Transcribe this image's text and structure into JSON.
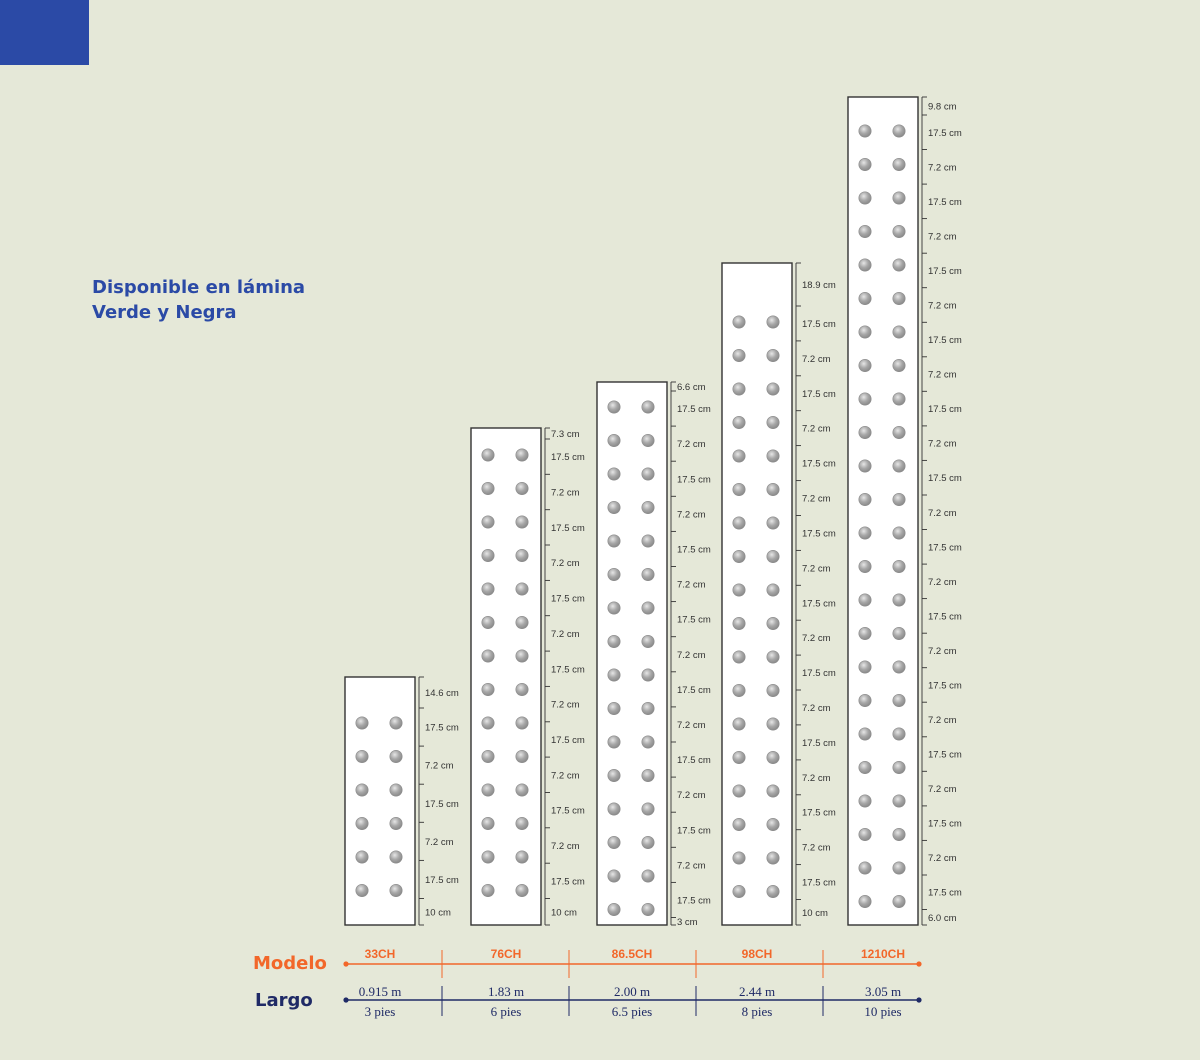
{
  "heading": {
    "line1": "Disponible en lámina",
    "line2": "Verde y Negra"
  },
  "legend": {
    "model_title": "Modelo",
    "length_title": "Largo"
  },
  "colors": {
    "background": "#e5e8d8",
    "corner": "#2b4aa6",
    "heading": "#2b4aa6",
    "model": "#f2672a",
    "length": "#1f2a66",
    "panel_fill": "#ffffff",
    "panel_stroke": "#333333",
    "hole": "#a7a7a7"
  },
  "panels": [
    {
      "model": "33CH",
      "length_m": "0.915 m",
      "length_ft": "3 pies",
      "rows": 6,
      "dims": [
        "14.6 cm",
        "17.5 cm",
        "7.2 cm",
        "17.5 cm",
        "7.2 cm",
        "17.5 cm",
        "10 cm"
      ]
    },
    {
      "model": "76CH",
      "length_m": "1.83 m",
      "length_ft": "6 pies",
      "rows": 14,
      "dims": [
        "7.3 cm",
        "17.5 cm",
        "7.2 cm",
        "17.5 cm",
        "7.2 cm",
        "17.5 cm",
        "7.2 cm",
        "17.5 cm",
        "7.2 cm",
        "17.5 cm",
        "7.2 cm",
        "17.5 cm",
        "7.2 cm",
        "17.5 cm",
        "10 cm"
      ]
    },
    {
      "model": "86.5CH",
      "length_m": "2.00 m",
      "length_ft": "6.5 pies",
      "rows": 16,
      "dims": [
        "6.6 cm",
        "17.5 cm",
        "7.2 cm",
        "17.5 cm",
        "7.2 cm",
        "17.5 cm",
        "7.2 cm",
        "17.5 cm",
        "7.2 cm",
        "17.5 cm",
        "7.2 cm",
        "17.5 cm",
        "7.2 cm",
        "17.5 cm",
        "7.2 cm",
        "17.5 cm",
        "3 cm"
      ]
    },
    {
      "model": "98CH",
      "length_m": "2.44 m",
      "length_ft": "8 pies",
      "rows": 18,
      "dims": [
        "18.9 cm",
        "17.5 cm",
        "7.2 cm",
        "17.5 cm",
        "7.2 cm",
        "17.5 cm",
        "7.2 cm",
        "17.5 cm",
        "7.2 cm",
        "17.5 cm",
        "7.2 cm",
        "17.5 cm",
        "7.2 cm",
        "17.5 cm",
        "7.2 cm",
        "17.5 cm",
        "7.2 cm",
        "17.5 cm",
        "10 cm"
      ]
    },
    {
      "model": "1210CH",
      "length_m": "3.05 m",
      "length_ft": "10 pies",
      "rows": 24,
      "dims": [
        "9.8 cm",
        "17.5 cm",
        "7.2 cm",
        "17.5 cm",
        "7.2 cm",
        "17.5 cm",
        "7.2 cm",
        "17.5 cm",
        "7.2 cm",
        "17.5 cm",
        "7.2 cm",
        "17.5 cm",
        "7.2 cm",
        "17.5 cm",
        "7.2 cm",
        "17.5 cm",
        "7.2 cm",
        "17.5 cm",
        "7.2 cm",
        "17.5 cm",
        "7.2 cm",
        "17.5 cm",
        "7.2 cm",
        "17.5 cm",
        "6.0 cm"
      ]
    }
  ]
}
